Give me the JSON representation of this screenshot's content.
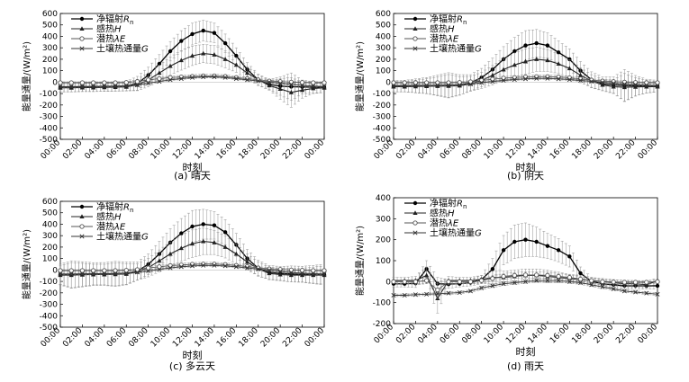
{
  "axis": {
    "xlabel": "时刻",
    "ylabel": "能量通量/(W/m²)",
    "x_ticks": [
      "00:00",
      "02:00",
      "04:00",
      "06:00",
      "08:00",
      "10:00",
      "12:00",
      "14:00",
      "16:00",
      "18:00",
      "20:00",
      "22:00",
      "00:00"
    ]
  },
  "legend": [
    {
      "label": "净辐射Rn",
      "marker": "filled-circle"
    },
    {
      "label": "感热H",
      "marker": "filled-triangle"
    },
    {
      "label": "潜热λE",
      "marker": "open-circle"
    },
    {
      "label": "土壤热通量G",
      "marker": "x-cross"
    }
  ],
  "chart_data": [
    {
      "type": "line",
      "caption": "(a) 晴天",
      "xlabel": "时刻",
      "ylabel": "能量通量/(W/m²)",
      "x_hours": [
        0,
        1,
        2,
        3,
        4,
        5,
        6,
        7,
        8,
        9,
        10,
        11,
        12,
        13,
        14,
        15,
        16,
        17,
        18,
        19,
        20,
        21,
        22,
        23,
        24
      ],
      "ylim": [
        -500,
        600
      ],
      "yticks": [
        -500,
        -400,
        -300,
        -200,
        -100,
        0,
        100,
        200,
        300,
        400,
        500,
        600
      ],
      "series": [
        {
          "name": "净辐射Rn",
          "values": [
            -45,
            -45,
            -42,
            -42,
            -40,
            -38,
            -35,
            -10,
            60,
            160,
            270,
            360,
            420,
            450,
            430,
            340,
            230,
            110,
            20,
            -20,
            -35,
            -40,
            -42,
            -45,
            -45
          ],
          "err": [
            40,
            40,
            40,
            40,
            40,
            40,
            40,
            60,
            70,
            80,
            85,
            90,
            95,
            90,
            85,
            80,
            70,
            60,
            50,
            45,
            80,
            120,
            60,
            50,
            45
          ]
        },
        {
          "name": "感热H",
          "values": [
            -50,
            -50,
            -48,
            -48,
            -46,
            -44,
            -42,
            -25,
            20,
            80,
            140,
            190,
            230,
            250,
            240,
            200,
            150,
            80,
            20,
            -30,
            -60,
            -90,
            -70,
            -55,
            -50
          ],
          "err": [
            35,
            35,
            35,
            35,
            35,
            35,
            35,
            50,
            60,
            70,
            80,
            85,
            85,
            80,
            80,
            75,
            65,
            55,
            45,
            40,
            90,
            130,
            70,
            45,
            40
          ]
        },
        {
          "name": "潜热λE",
          "values": [
            -5,
            -5,
            -5,
            -5,
            -5,
            -5,
            -3,
            5,
            20,
            30,
            40,
            45,
            50,
            55,
            55,
            50,
            40,
            30,
            20,
            10,
            5,
            0,
            -3,
            -5,
            -5
          ],
          "err": [
            8,
            8,
            8,
            8,
            8,
            8,
            8,
            10,
            12,
            12,
            14,
            14,
            15,
            15,
            15,
            14,
            12,
            12,
            10,
            10,
            10,
            10,
            8,
            8,
            8
          ]
        },
        {
          "name": "土壤热通量G",
          "values": [
            -40,
            -40,
            -38,
            -38,
            -36,
            -35,
            -33,
            -25,
            -10,
            5,
            20,
            30,
            40,
            45,
            45,
            40,
            30,
            20,
            10,
            0,
            -10,
            -20,
            -28,
            -35,
            -40
          ],
          "err": [
            6,
            6,
            6,
            6,
            6,
            6,
            6,
            6,
            8,
            8,
            8,
            8,
            8,
            8,
            8,
            8,
            8,
            8,
            8,
            8,
            6,
            6,
            6,
            6,
            6
          ]
        }
      ]
    },
    {
      "type": "line",
      "caption": "(b) 阴天",
      "xlabel": "时刻",
      "ylabel": "能量通量/(W/m²)",
      "x_hours": [
        0,
        1,
        2,
        3,
        4,
        5,
        6,
        7,
        8,
        9,
        10,
        11,
        12,
        13,
        14,
        15,
        16,
        17,
        18,
        19,
        20,
        21,
        22,
        23,
        24
      ],
      "ylim": [
        -500,
        600
      ],
      "yticks": [
        -500,
        -400,
        -300,
        -200,
        -100,
        0,
        100,
        200,
        300,
        400,
        500,
        600
      ],
      "series": [
        {
          "name": "净辐射Rn",
          "values": [
            -35,
            -35,
            -32,
            -30,
            -30,
            -28,
            -25,
            -5,
            40,
            110,
            200,
            270,
            320,
            340,
            320,
            260,
            200,
            100,
            20,
            -15,
            -25,
            -30,
            -32,
            -35,
            -35
          ],
          "err": [
            50,
            50,
            60,
            70,
            90,
            110,
            90,
            70,
            80,
            100,
            110,
            120,
            130,
            120,
            110,
            100,
            90,
            80,
            70,
            60,
            70,
            140,
            90,
            60,
            50
          ]
        },
        {
          "name": "感热H",
          "values": [
            -40,
            -40,
            -38,
            -36,
            -35,
            -34,
            -32,
            -15,
            15,
            60,
            110,
            150,
            180,
            200,
            190,
            160,
            120,
            60,
            10,
            -25,
            -40,
            -45,
            -42,
            -40,
            -40
          ],
          "err": [
            45,
            45,
            55,
            65,
            80,
            100,
            80,
            65,
            70,
            85,
            95,
            105,
            110,
            105,
            95,
            85,
            75,
            65,
            55,
            50,
            60,
            120,
            80,
            55,
            45
          ]
        },
        {
          "name": "潜热λE",
          "values": [
            -5,
            -5,
            -5,
            -5,
            -5,
            -5,
            -3,
            3,
            15,
            25,
            35,
            40,
            45,
            48,
            48,
            45,
            38,
            28,
            18,
            10,
            5,
            0,
            -3,
            -5,
            -5
          ],
          "err": [
            8,
            8,
            8,
            8,
            8,
            8,
            8,
            10,
            12,
            12,
            14,
            14,
            15,
            15,
            15,
            14,
            12,
            12,
            10,
            10,
            10,
            10,
            8,
            8,
            8
          ]
        },
        {
          "name": "土壤热通量G",
          "values": [
            -30,
            -30,
            -28,
            -28,
            -27,
            -26,
            -25,
            -18,
            -5,
            5,
            15,
            22,
            28,
            32,
            32,
            28,
            22,
            15,
            6,
            -2,
            -10,
            -18,
            -22,
            -27,
            -30
          ],
          "err": [
            6,
            6,
            6,
            6,
            6,
            6,
            6,
            6,
            8,
            8,
            8,
            8,
            8,
            8,
            8,
            8,
            8,
            8,
            8,
            8,
            6,
            6,
            6,
            6,
            6
          ]
        }
      ]
    },
    {
      "type": "line",
      "caption": "(c) 多云天",
      "xlabel": "时刻",
      "ylabel": "能量通量/(W/m²)",
      "x_hours": [
        0,
        1,
        2,
        3,
        4,
        5,
        6,
        7,
        8,
        9,
        10,
        11,
        12,
        13,
        14,
        15,
        16,
        17,
        18,
        19,
        20,
        21,
        22,
        23,
        24
      ],
      "ylim": [
        -500,
        600
      ],
      "yticks": [
        -500,
        -400,
        -300,
        -200,
        -100,
        0,
        100,
        200,
        300,
        400,
        500,
        600
      ],
      "series": [
        {
          "name": "净辐射Rn",
          "values": [
            -40,
            -40,
            -38,
            -36,
            -35,
            -34,
            -30,
            -10,
            50,
            140,
            240,
            320,
            380,
            400,
            390,
            330,
            220,
            100,
            15,
            -20,
            -30,
            -35,
            -38,
            -40,
            -40
          ],
          "err": [
            90,
            120,
            110,
            100,
            100,
            110,
            100,
            80,
            90,
            110,
            120,
            130,
            140,
            130,
            120,
            110,
            100,
            80,
            70,
            60,
            60,
            70,
            70,
            80,
            90
          ]
        },
        {
          "name": "感热H",
          "values": [
            -45,
            -45,
            -42,
            -40,
            -40,
            -38,
            -35,
            -18,
            20,
            80,
            140,
            190,
            230,
            250,
            240,
            200,
            140,
            70,
            10,
            -30,
            -40,
            -45,
            -45,
            -45,
            -45
          ],
          "err": [
            80,
            110,
            100,
            90,
            90,
            100,
            90,
            70,
            80,
            95,
            105,
            115,
            120,
            115,
            105,
            95,
            85,
            70,
            60,
            55,
            55,
            60,
            60,
            70,
            80
          ]
        },
        {
          "name": "潜热λE",
          "values": [
            -5,
            -5,
            -5,
            -5,
            -5,
            -5,
            -3,
            3,
            18,
            28,
            38,
            44,
            50,
            52,
            52,
            48,
            40,
            30,
            18,
            10,
            5,
            0,
            -3,
            -5,
            -5
          ],
          "err": [
            8,
            8,
            8,
            8,
            8,
            8,
            8,
            10,
            12,
            12,
            14,
            14,
            15,
            15,
            15,
            14,
            12,
            12,
            10,
            10,
            10,
            10,
            8,
            8,
            8
          ]
        },
        {
          "name": "土壤热通量G",
          "values": [
            -35,
            -35,
            -33,
            -33,
            -32,
            -30,
            -28,
            -20,
            -8,
            5,
            18,
            28,
            35,
            40,
            40,
            35,
            28,
            18,
            8,
            -2,
            -12,
            -22,
            -28,
            -32,
            -35
          ],
          "err": [
            6,
            6,
            6,
            6,
            6,
            6,
            6,
            6,
            8,
            8,
            8,
            8,
            8,
            8,
            8,
            8,
            8,
            8,
            8,
            8,
            6,
            6,
            6,
            6,
            6
          ]
        }
      ]
    },
    {
      "type": "line",
      "caption": "(d) 雨天",
      "xlabel": "时刻",
      "ylabel": "能量通量/(W/m²)",
      "x_hours": [
        0,
        1,
        2,
        3,
        4,
        5,
        6,
        7,
        8,
        9,
        10,
        11,
        12,
        13,
        14,
        15,
        16,
        17,
        18,
        19,
        20,
        21,
        22,
        23,
        24
      ],
      "ylim": [
        -200,
        400
      ],
      "yticks": [
        -200,
        -100,
        0,
        100,
        200,
        300,
        400
      ],
      "series": [
        {
          "name": "净辐射Rn",
          "values": [
            -10,
            -10,
            -8,
            60,
            -10,
            -12,
            -10,
            -5,
            10,
            60,
            150,
            190,
            200,
            190,
            170,
            150,
            120,
            40,
            0,
            -10,
            -15,
            -20,
            -20,
            -20,
            -20
          ],
          "err": [
            15,
            15,
            20,
            40,
            30,
            20,
            15,
            15,
            20,
            50,
            70,
            80,
            80,
            70,
            60,
            55,
            50,
            30,
            20,
            15,
            15,
            15,
            15,
            15,
            15
          ]
        },
        {
          "name": "感热H",
          "values": [
            5,
            5,
            5,
            30,
            -80,
            5,
            5,
            5,
            10,
            20,
            20,
            25,
            30,
            30,
            25,
            20,
            15,
            10,
            5,
            0,
            -5,
            -10,
            -10,
            -15,
            5
          ],
          "err": [
            15,
            15,
            20,
            40,
            70,
            20,
            15,
            15,
            20,
            30,
            30,
            30,
            30,
            30,
            30,
            25,
            20,
            20,
            15,
            15,
            15,
            15,
            15,
            15,
            15
          ]
        },
        {
          "name": "潜热λE",
          "values": [
            0,
            0,
            0,
            5,
            -40,
            0,
            0,
            0,
            5,
            15,
            25,
            30,
            32,
            32,
            30,
            25,
            20,
            12,
            5,
            0,
            -2,
            -3,
            -3,
            -3,
            0
          ],
          "err": [
            8,
            8,
            8,
            15,
            40,
            8,
            8,
            8,
            10,
            12,
            14,
            14,
            15,
            15,
            15,
            14,
            12,
            12,
            10,
            10,
            10,
            10,
            8,
            8,
            8
          ]
        },
        {
          "name": "土壤热通量G",
          "values": [
            -65,
            -65,
            -62,
            -60,
            -58,
            -55,
            -52,
            -45,
            -30,
            -20,
            -10,
            -5,
            0,
            5,
            5,
            5,
            0,
            -5,
            -15,
            -25,
            -35,
            -45,
            -50,
            -55,
            -60
          ],
          "err": [
            6,
            6,
            6,
            6,
            6,
            6,
            6,
            6,
            8,
            8,
            8,
            8,
            8,
            8,
            8,
            8,
            8,
            8,
            8,
            8,
            6,
            6,
            6,
            6,
            6
          ]
        }
      ]
    }
  ]
}
